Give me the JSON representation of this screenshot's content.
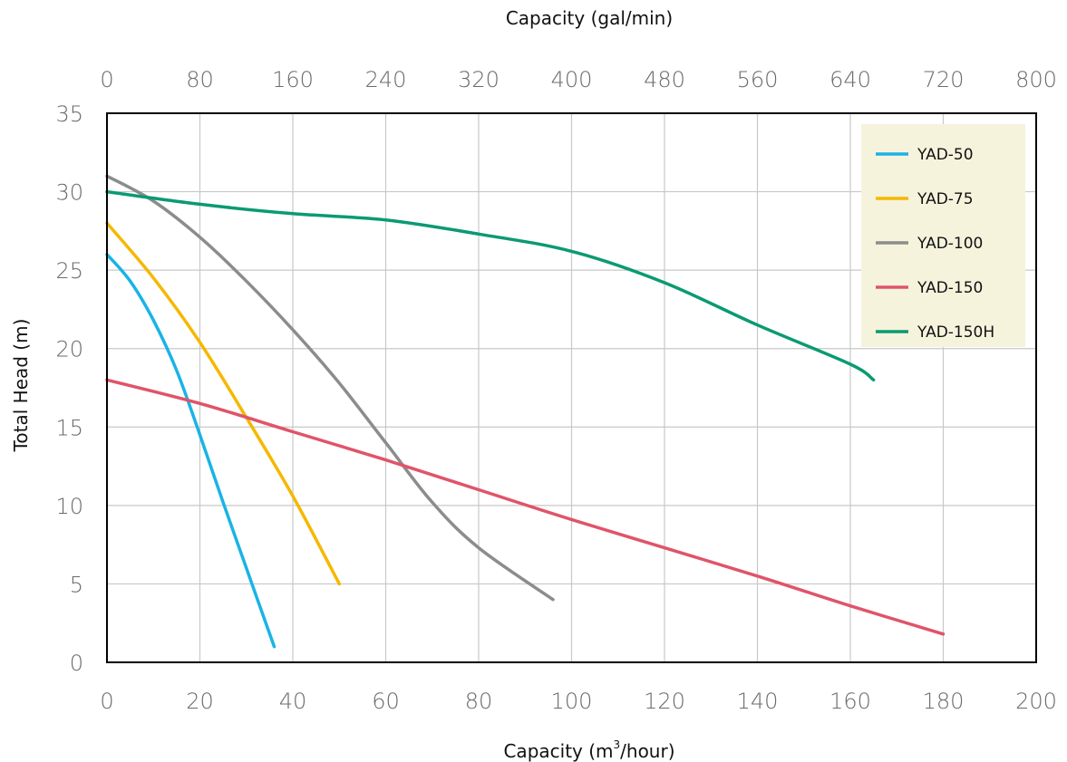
{
  "chart_data": {
    "type": "line",
    "xlabel_top": "Capacity  (gal/min)",
    "xlabel_bottom_pre": "Capacity  (m",
    "xlabel_bottom_sup": "3",
    "xlabel_bottom_post": "/hour)",
    "ylabel": "Total Head  (m)",
    "xlim": [
      0,
      200
    ],
    "ylim": [
      0,
      35
    ],
    "x2lim": [
      0,
      800
    ],
    "x_ticks": [
      "0",
      "20",
      "40",
      "60",
      "80",
      "100",
      "120",
      "140",
      "160",
      "180",
      "200"
    ],
    "x2_ticks": [
      "0",
      "80",
      "160",
      "240",
      "320",
      "400",
      "480",
      "560",
      "640",
      "720",
      "800"
    ],
    "y_ticks": [
      "0",
      "5",
      "10",
      "15",
      "20",
      "25",
      "30",
      "35"
    ],
    "grid": true,
    "legend_position": "top-right",
    "series": [
      {
        "name": "YAD-50",
        "color": "#1ab3e6",
        "points": [
          [
            0,
            26
          ],
          [
            5,
            24.3
          ],
          [
            10,
            21.8
          ],
          [
            15,
            18.6
          ],
          [
            20,
            14.5
          ],
          [
            25,
            10.2
          ],
          [
            30,
            6.0
          ],
          [
            36,
            1
          ]
        ]
      },
      {
        "name": "YAD-75",
        "color": "#f5b800",
        "points": [
          [
            0,
            28
          ],
          [
            10,
            24.5
          ],
          [
            20,
            20.4
          ],
          [
            30,
            15.6
          ],
          [
            40,
            10.6
          ],
          [
            50,
            5
          ]
        ]
      },
      {
        "name": "YAD-100",
        "color": "#8c8c8c",
        "points": [
          [
            0,
            31
          ],
          [
            10,
            29.4
          ],
          [
            20,
            27.1
          ],
          [
            30,
            24.3
          ],
          [
            40,
            21.2
          ],
          [
            50,
            17.8
          ],
          [
            60,
            14
          ],
          [
            70,
            10.2
          ],
          [
            80,
            7.3
          ],
          [
            96,
            4
          ]
        ]
      },
      {
        "name": "YAD-150",
        "color": "#e05468",
        "points": [
          [
            0,
            18
          ],
          [
            20,
            16.5
          ],
          [
            40,
            14.7
          ],
          [
            60,
            12.9
          ],
          [
            80,
            11
          ],
          [
            100,
            9.1
          ],
          [
            120,
            7.3
          ],
          [
            140,
            5.5
          ],
          [
            160,
            3.6
          ],
          [
            180,
            1.8
          ]
        ]
      },
      {
        "name": "YAD-150H",
        "color": "#0b9a72",
        "points": [
          [
            0,
            30
          ],
          [
            20,
            29.2
          ],
          [
            40,
            28.6
          ],
          [
            60,
            28.2
          ],
          [
            80,
            27.3
          ],
          [
            100,
            26.2
          ],
          [
            120,
            24.2
          ],
          [
            140,
            21.5
          ],
          [
            160,
            19
          ],
          [
            165,
            18
          ]
        ]
      }
    ]
  }
}
